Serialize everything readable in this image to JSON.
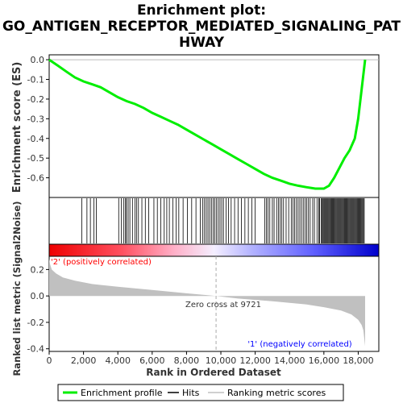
{
  "chart_data": {
    "type": "line",
    "title": "Enrichment plot:\nGO_ANTIGEN_RECEPTOR_MEDIATED_SIGNALING_PAT\nHWAY",
    "xlabel": "Rank in Ordered Dataset",
    "xlim": [
      0,
      19200
    ],
    "x_ticks": [
      "0",
      "2,000",
      "4,000",
      "6,000",
      "8,000",
      "10,000",
      "12,000",
      "14,000",
      "16,000",
      "18,000"
    ],
    "x_tick_values": [
      0,
      2000,
      4000,
      6000,
      8000,
      10000,
      12000,
      14000,
      16000,
      18000
    ],
    "enrichment_panel": {
      "ylabel": "Enrichment score (ES)",
      "ylim": [
        -0.7,
        0.025
      ],
      "y_ticks": [
        "0.0",
        "-0.1",
        "-0.2",
        "-0.3",
        "-0.4",
        "-0.5",
        "-0.6"
      ],
      "y_tick_values": [
        0.0,
        -0.1,
        -0.2,
        -0.3,
        -0.4,
        -0.5,
        -0.6
      ],
      "series": [
        {
          "name": "Enrichment profile",
          "color": "#00ee00",
          "x": [
            0,
            500,
            1000,
            1500,
            2000,
            2500,
            3000,
            3500,
            4000,
            4500,
            5000,
            5500,
            6000,
            6500,
            7000,
            7500,
            8000,
            8500,
            9000,
            9500,
            10000,
            10500,
            11000,
            11500,
            12000,
            12500,
            13000,
            13500,
            14000,
            14500,
            15000,
            15500,
            16000,
            16300,
            16600,
            16900,
            17200,
            17500,
            17800,
            18000,
            18200,
            18400
          ],
          "y": [
            0.0,
            -0.03,
            -0.06,
            -0.09,
            -0.11,
            -0.125,
            -0.14,
            -0.165,
            -0.19,
            -0.21,
            -0.225,
            -0.245,
            -0.27,
            -0.29,
            -0.31,
            -0.33,
            -0.355,
            -0.38,
            -0.405,
            -0.43,
            -0.455,
            -0.48,
            -0.505,
            -0.53,
            -0.555,
            -0.58,
            -0.6,
            -0.615,
            -0.63,
            -0.64,
            -0.648,
            -0.655,
            -0.655,
            -0.64,
            -0.6,
            -0.55,
            -0.5,
            -0.46,
            -0.4,
            -0.3,
            -0.15,
            0.0
          ]
        }
      ]
    },
    "hits": [
      1900,
      2200,
      2400,
      2600,
      2750,
      4050,
      4200,
      4350,
      4450,
      4500,
      4600,
      4700,
      4850,
      5000,
      5100,
      5200,
      5400,
      5600,
      5800,
      6100,
      6300,
      6500,
      6700,
      6850,
      7000,
      7200,
      7400,
      7550,
      7800,
      8050,
      8300,
      8550,
      8800,
      8950,
      9050,
      9150,
      9250,
      9350,
      9450,
      9550,
      9650,
      9750,
      9850,
      9950,
      10050,
      10150,
      10300,
      10450,
      10600,
      10800,
      11000,
      11200,
      11400,
      11600,
      11800,
      12000,
      12550,
      12650,
      12750,
      12850,
      13000,
      13100,
      13250,
      13350,
      13450,
      13550,
      13650,
      13800,
      13950,
      14100,
      14200,
      14300,
      14400,
      14500,
      14600,
      14700,
      14800,
      14900,
      15000,
      15100,
      15200,
      15350,
      15450,
      15600,
      15700,
      15750,
      15850,
      15900,
      15950,
      16000,
      16050,
      16100,
      16150,
      16200,
      16250,
      16300,
      16350,
      16400,
      16450,
      16500,
      16550,
      16600,
      16650,
      16700,
      16750,
      16800,
      16850,
      16900,
      16950,
      17000,
      17050,
      17100,
      17150,
      17200,
      17250,
      17300,
      17350,
      17400,
      17450,
      17500,
      17550,
      17600,
      17650,
      17700,
      17750,
      17800,
      17850,
      17900,
      17950,
      18000,
      18050,
      18100,
      18150,
      18200,
      18250,
      18300,
      18350
    ],
    "metric_panel": {
      "ylabel": "Ranked list metric (Signal2Noise)",
      "ylim": [
        -0.42,
        0.3
      ],
      "y_ticks": [
        "0.2",
        "0.0",
        "-0.2",
        "-0.4"
      ],
      "y_tick_values": [
        0.2,
        0.0,
        -0.2,
        -0.4
      ],
      "zero_cross": 9721,
      "zero_cross_label": "Zero cross at 9721",
      "positive_label": "'2' (positively correlated)",
      "negative_label": "'1' (negatively correlated)",
      "positive_color": "#ff0000",
      "negative_color": "#0000ff",
      "fill_color": "#c0c0c0",
      "x": [
        0,
        50,
        150,
        400,
        800,
        1500,
        2500,
        4000,
        6000,
        8000,
        9721,
        11000,
        13000,
        15000,
        16000,
        17000,
        17600,
        18000,
        18200,
        18300,
        18400
      ],
      "y": [
        0.28,
        0.24,
        0.2,
        0.17,
        0.14,
        0.115,
        0.09,
        0.07,
        0.045,
        0.02,
        0.0,
        -0.02,
        -0.04,
        -0.065,
        -0.085,
        -0.11,
        -0.14,
        -0.18,
        -0.22,
        -0.26,
        -0.38
      ]
    },
    "legend": {
      "position": "bottom",
      "entries": [
        {
          "name": "Enrichment profile",
          "color": "#00ee00"
        },
        {
          "name": "Hits",
          "color": "#000000"
        },
        {
          "name": "Ranking metric scores",
          "color": "#c0c0c0"
        }
      ]
    }
  }
}
